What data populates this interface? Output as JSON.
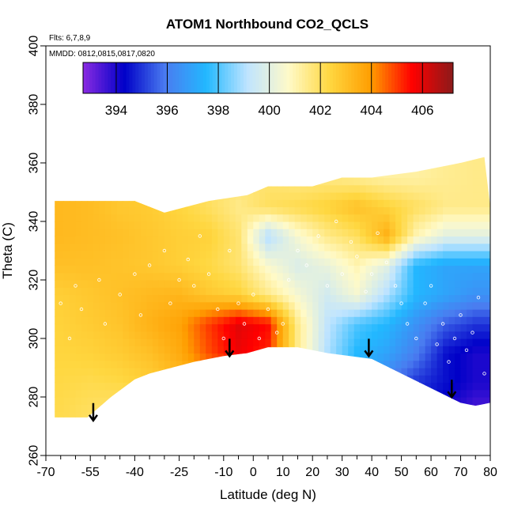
{
  "chart_data": {
    "type": "heatmap",
    "title": "ATOM1 Northbound CO2_QCLS",
    "annotations": {
      "flights": "Flts: 6,7,8,9",
      "dates": "MMDD: 0812,0815,0817,0820"
    },
    "xlabel": "Latitude (deg N)",
    "ylabel": "Theta (C)",
    "xlim": [
      -70,
      80
    ],
    "ylim": [
      260,
      400
    ],
    "x_ticks": [
      -70,
      -55,
      -40,
      -25,
      -10,
      0,
      10,
      20,
      30,
      40,
      50,
      60,
      70,
      80
    ],
    "x_tick_labels": [
      "-70",
      "-55",
      "-40",
      "-25",
      "-10",
      "0",
      "10",
      "20",
      "30",
      "40",
      "50",
      "60",
      "70",
      "80"
    ],
    "y_ticks": [
      260,
      280,
      300,
      320,
      340,
      360,
      380,
      400
    ],
    "y_tick_labels": [
      "260",
      "280",
      "300",
      "320",
      "340",
      "360",
      "380",
      "400"
    ],
    "colorbar": {
      "range": [
        392.7,
        407.2
      ],
      "ticks": [
        394,
        396,
        398,
        400,
        402,
        404,
        406
      ],
      "tick_labels": [
        "394",
        "396",
        "398",
        "400",
        "402",
        "404",
        "406"
      ],
      "colors": [
        "#8a2be2",
        "#0000c8",
        "#4a7cf0",
        "#22b8ff",
        "#bfe4ff",
        "#fffac8",
        "#ffd740",
        "#ff9d00",
        "#ff0000",
        "#8b1a1a"
      ]
    },
    "field": {
      "lat": [
        -65,
        -55,
        -45,
        -35,
        -25,
        -15,
        -5,
        5,
        15,
        25,
        35,
        45,
        55,
        65,
        75
      ],
      "theta": [
        275,
        285,
        295,
        305,
        315,
        325,
        335,
        345,
        355
      ],
      "co2": [
        [
          402.2,
          402.0,
          401.8,
          402.0,
          402.2,
          402.6,
          403.0,
          403.0,
          401.0,
          399.5,
          397.5,
          396.0,
          395.0,
          394.0,
          393.4
        ],
        [
          402.3,
          402.2,
          402.3,
          402.6,
          403.0,
          403.5,
          404.0,
          403.8,
          401.0,
          399.3,
          397.5,
          396.0,
          395.0,
          394.5,
          394.0
        ],
        [
          402.4,
          402.5,
          402.7,
          403.0,
          403.6,
          404.8,
          405.8,
          405.2,
          401.5,
          399.0,
          397.5,
          397.0,
          396.0,
          394.5,
          394.0
        ],
        [
          402.5,
          402.7,
          402.9,
          403.4,
          403.8,
          405.0,
          406.0,
          405.5,
          401.5,
          399.2,
          398.0,
          397.5,
          396.5,
          395.5,
          395.0
        ],
        [
          402.6,
          402.8,
          403.0,
          403.2,
          403.3,
          402.8,
          402.5,
          401.5,
          400.5,
          399.6,
          400.5,
          399.0,
          397.5,
          397.0,
          396.5
        ],
        [
          403.0,
          403.0,
          402.9,
          402.8,
          402.6,
          402.3,
          401.8,
          400.6,
          399.8,
          400.2,
          401.0,
          400.0,
          397.5,
          397.0,
          397.0
        ],
        [
          403.2,
          403.1,
          403.0,
          402.8,
          402.6,
          402.5,
          401.8,
          399.0,
          400.5,
          401.5,
          402.0,
          403.5,
          401.0,
          400.0,
          400.0
        ],
        [
          null,
          null,
          402.8,
          402.7,
          402.4,
          402.0,
          401.5,
          402.0,
          402.2,
          402.5,
          403.0,
          402.5,
          402.0,
          401.5,
          401.5
        ],
        [
          null,
          null,
          null,
          null,
          null,
          null,
          401.8,
          401.8,
          401.6,
          401.6,
          401.4,
          401.2,
          401.2,
          401.4,
          401.5
        ]
      ]
    },
    "domain_boundary": {
      "top": [
        [
          -67,
          347
        ],
        [
          -40,
          347
        ],
        [
          -30,
          343
        ],
        [
          -15,
          347
        ],
        [
          -2,
          349
        ],
        [
          5,
          352
        ],
        [
          20,
          352
        ],
        [
          30,
          355
        ],
        [
          40,
          355
        ],
        [
          55,
          357
        ],
        [
          70,
          360
        ],
        [
          78,
          362
        ],
        [
          80,
          345
        ]
      ],
      "bottom": [
        [
          80,
          278
        ],
        [
          75,
          277
        ],
        [
          70,
          278
        ],
        [
          40,
          293
        ],
        [
          25,
          295
        ],
        [
          15,
          297
        ],
        [
          5,
          297
        ],
        [
          -2,
          295
        ],
        [
          -10,
          294
        ],
        [
          -15,
          293
        ],
        [
          -20,
          292
        ],
        [
          -35,
          288
        ],
        [
          -40,
          286
        ],
        [
          -48,
          280
        ],
        [
          -56,
          273
        ],
        [
          -67,
          273
        ]
      ]
    },
    "arrows": [
      {
        "lat": -54,
        "theta": 276
      },
      {
        "lat": -8,
        "theta": 298
      },
      {
        "lat": 39,
        "theta": 298
      },
      {
        "lat": 67,
        "theta": 284
      }
    ],
    "sample_points": [
      [
        -65,
        312
      ],
      [
        -62,
        300
      ],
      [
        -60,
        318
      ],
      [
        -58,
        310
      ],
      [
        -52,
        320
      ],
      [
        -50,
        305
      ],
      [
        -45,
        315
      ],
      [
        -40,
        322
      ],
      [
        -38,
        308
      ],
      [
        -35,
        325
      ],
      [
        -30,
        330
      ],
      [
        -28,
        312
      ],
      [
        -25,
        320
      ],
      [
        -22,
        327
      ],
      [
        -20,
        318
      ],
      [
        -18,
        335
      ],
      [
        -15,
        322
      ],
      [
        -12,
        310
      ],
      [
        -10,
        300
      ],
      [
        -8,
        330
      ],
      [
        -5,
        312
      ],
      [
        -3,
        305
      ],
      [
        0,
        315
      ],
      [
        2,
        300
      ],
      [
        5,
        310
      ],
      [
        8,
        302
      ],
      [
        10,
        305
      ],
      [
        12,
        320
      ],
      [
        15,
        330
      ],
      [
        18,
        325
      ],
      [
        22,
        335
      ],
      [
        25,
        318
      ],
      [
        28,
        340
      ],
      [
        30,
        322
      ],
      [
        33,
        333
      ],
      [
        35,
        328
      ],
      [
        38,
        316
      ],
      [
        40,
        322
      ],
      [
        42,
        336
      ],
      [
        45,
        326
      ],
      [
        48,
        318
      ],
      [
        50,
        312
      ],
      [
        52,
        305
      ],
      [
        55,
        300
      ],
      [
        58,
        312
      ],
      [
        60,
        318
      ],
      [
        62,
        298
      ],
      [
        64,
        305
      ],
      [
        66,
        292
      ],
      [
        68,
        300
      ],
      [
        70,
        308
      ],
      [
        72,
        296
      ],
      [
        74,
        302
      ],
      [
        76,
        314
      ],
      [
        78,
        288
      ]
    ]
  }
}
